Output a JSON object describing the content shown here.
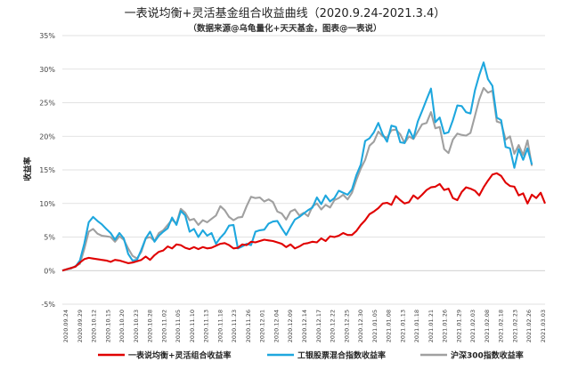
{
  "chart_data": {
    "type": "line",
    "title": "一表说均衡+灵活基金组合收益曲线（2020.9.24-2021.3.4）",
    "subtitle": "（数据来源@乌龟量化+天天基金，图表@一表说）",
    "ylabel": "收益率",
    "xlabel": "",
    "ylim": [
      -5,
      35
    ],
    "yticks": [
      "-5%",
      "0%",
      "5%",
      "10%",
      "15%",
      "20%",
      "25%",
      "30%",
      "35%"
    ],
    "ytick_values": [
      -5,
      0,
      5,
      10,
      15,
      20,
      25,
      30,
      35
    ],
    "x_tick_labels": [
      "2020.09.24",
      "2020.09.29",
      "2020.10.12",
      "2020.10.15",
      "2020.10.20",
      "2020.10.23",
      "2020.10.28",
      "2020.11.02",
      "2020.11.05",
      "2020.11.10",
      "2020.11.13",
      "2020.11.18",
      "2020.11.23",
      "2020.11.26",
      "2020.12.01",
      "2020.12.04",
      "2020.12.09",
      "2020.12.14",
      "2020.12.17",
      "2020.12.22",
      "2020.12.25",
      "2020.12.30",
      "2021.01.05",
      "2021.01.08",
      "2021.01.13",
      "2021.01.18",
      "2021.01.21",
      "2021.01.26",
      "2021.01.29",
      "2021.02.03",
      "2021.02.08",
      "2021.02.18",
      "2021.02.23",
      "2021.02.26",
      "2021.03.03"
    ],
    "grid": true,
    "legend_position": "bottom",
    "series": [
      {
        "name": "一表说均衡+灵活组合收益率",
        "color": "#e00000",
        "values": [
          0,
          0.2,
          0.4,
          0.6,
          1.2,
          1.7,
          1.9,
          1.8,
          1.7,
          1.6,
          1.5,
          1.3,
          1.6,
          1.5,
          1.3,
          1.1,
          1.2,
          1.4,
          1.6,
          2.1,
          1.6,
          2.3,
          2.8,
          3.0,
          3.6,
          3.3,
          3.9,
          3.8,
          3.4,
          3.2,
          3.5,
          3.2,
          3.5,
          3.3,
          3.4,
          3.7,
          4.0,
          4.1,
          3.8,
          3.3,
          3.4,
          3.9,
          3.8,
          4.3,
          4.2,
          4.4,
          4.6,
          4.5,
          4.4,
          4.2,
          4.0,
          3.5,
          3.9,
          3.3,
          3.6,
          4.0,
          4.1,
          4.3,
          4.2,
          4.8,
          4.4,
          5.1,
          5.0,
          5.2,
          5.6,
          5.3,
          5.3,
          5.9,
          6.8,
          7.5,
          8.4,
          8.8,
          9.3,
          10.0,
          10.1,
          9.8,
          11.1,
          10.5,
          10.0,
          10.2,
          11.2,
          10.7,
          11.3,
          12.0,
          12.4,
          12.5,
          12.9,
          12.0,
          12.2,
          10.8,
          10.5,
          11.7,
          12.4,
          12.2,
          11.9,
          11.2,
          12.4,
          13.4,
          14.3,
          14.5,
          14.1,
          13.1,
          12.6,
          12.5,
          11.2,
          11.5,
          10.0,
          11.3,
          10.8,
          11.6,
          10.0
        ]
      },
      {
        "name": "工银股票混合指数收益率",
        "color": "#1ea7de",
        "values": [
          0,
          0.2,
          0.4,
          0.6,
          1.5,
          4.0,
          7.2,
          8.0,
          7.4,
          6.9,
          6.2,
          5.6,
          4.6,
          5.6,
          4.8,
          2.5,
          1.5,
          1.6,
          3.1,
          4.8,
          5.8,
          4.3,
          5.2,
          5.8,
          6.3,
          7.9,
          6.8,
          8.9,
          8.2,
          5.8,
          6.2,
          5.0,
          6.0,
          5.2,
          5.6,
          4.0,
          4.9,
          5.6,
          6.7,
          6.8,
          3.3,
          3.6,
          4.0,
          3.8,
          5.8,
          6.0,
          6.1,
          7.0,
          7.3,
          7.4,
          6.3,
          5.3,
          6.5,
          7.6,
          8.0,
          8.5,
          9.0,
          9.4,
          10.9,
          9.9,
          11.2,
          10.3,
          10.8,
          11.9,
          11.6,
          11.3,
          12.1,
          14.2,
          15.8,
          19.3,
          19.7,
          20.6,
          22.0,
          20.3,
          19.2,
          21.6,
          21.4,
          19.1,
          19.0,
          21.0,
          19.7,
          22.2,
          23.8,
          25.5,
          27.1,
          22.1,
          22.8,
          20.4,
          20.6,
          22.4,
          24.6,
          24.5,
          23.6,
          23.4,
          26.8,
          29.1,
          31.0,
          28.5,
          27.5,
          22.8,
          22.4,
          18.4,
          18.2,
          15.3,
          18.1,
          16.5,
          18.2,
          15.8
        ]
      },
      {
        "name": "沪深300指数收益率",
        "color": "#a0a0a0",
        "values": [
          0,
          0.2,
          0.3,
          0.7,
          1.0,
          3.2,
          5.8,
          6.2,
          5.5,
          5.2,
          5.1,
          5.0,
          4.3,
          5.1,
          4.6,
          3.3,
          2.2,
          1.8,
          2.8,
          4.8,
          5.0,
          4.4,
          5.6,
          6.0,
          6.8,
          7.6,
          7.0,
          9.2,
          8.6,
          7.5,
          7.7,
          6.8,
          7.5,
          7.2,
          7.7,
          8.2,
          9.6,
          9.0,
          8.0,
          7.5,
          7.9,
          8.0,
          9.6,
          11.0,
          10.8,
          10.9,
          10.3,
          10.6,
          10.2,
          8.8,
          8.5,
          7.6,
          8.8,
          9.1,
          8.2,
          8.6,
          8.1,
          9.6,
          10.0,
          9.1,
          9.8,
          9.4,
          10.5,
          10.8,
          11.3,
          10.6,
          11.6,
          13.5,
          15.2,
          16.5,
          18.6,
          19.2,
          20.7,
          20.0,
          19.8,
          20.9,
          21.0,
          20.3,
          19.0,
          20.0,
          19.6,
          20.7,
          21.8,
          22.0,
          23.6,
          21.2,
          21.4,
          18.1,
          17.5,
          19.5,
          20.4,
          20.2,
          20.1,
          20.5,
          23.0,
          25.5,
          27.2,
          26.5,
          26.8,
          22.2,
          22.0,
          19.5,
          20.0,
          17.4,
          18.7,
          17.2,
          19.4,
          15.6
        ]
      }
    ]
  }
}
